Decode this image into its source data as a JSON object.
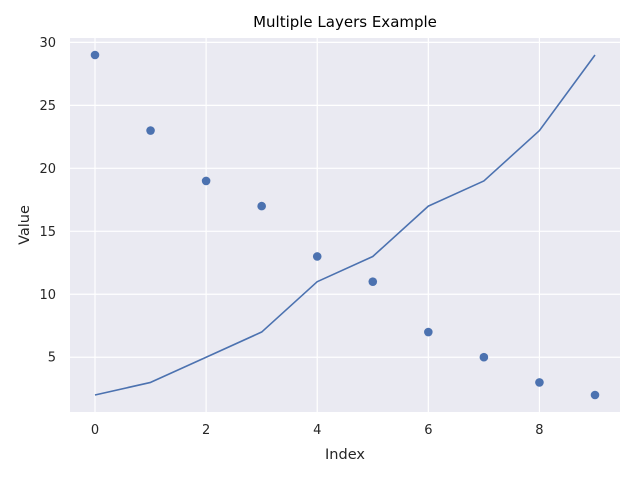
{
  "chart_data": {
    "type": "line+scatter",
    "title": "Multiple Layers Example",
    "xlabel": "Index",
    "ylabel": "Value",
    "x": [
      0,
      1,
      2,
      3,
      4,
      5,
      6,
      7,
      8,
      9
    ],
    "series": [
      {
        "type": "line",
        "values": [
          2,
          3,
          5,
          7,
          11,
          13,
          17,
          19,
          23,
          29
        ],
        "color": "#4c72b0"
      },
      {
        "type": "scatter",
        "values": [
          29,
          23,
          19,
          17,
          13,
          11,
          7,
          5,
          3,
          2
        ],
        "color": "#4c72b0"
      }
    ],
    "xlim": [
      -0.45,
      9.45
    ],
    "ylim": [
      0.65,
      30.35
    ],
    "xticks": [
      0,
      2,
      4,
      6,
      8
    ],
    "xtick_labels": [
      "0",
      "2",
      "4",
      "6",
      "8"
    ],
    "yticks": [
      5,
      10,
      15,
      20,
      25,
      30
    ],
    "ytick_labels": [
      "5",
      "10",
      "15",
      "20",
      "25",
      "30"
    ],
    "grid": true,
    "background": "#eaeaf2",
    "grid_color": "#ffffff"
  }
}
